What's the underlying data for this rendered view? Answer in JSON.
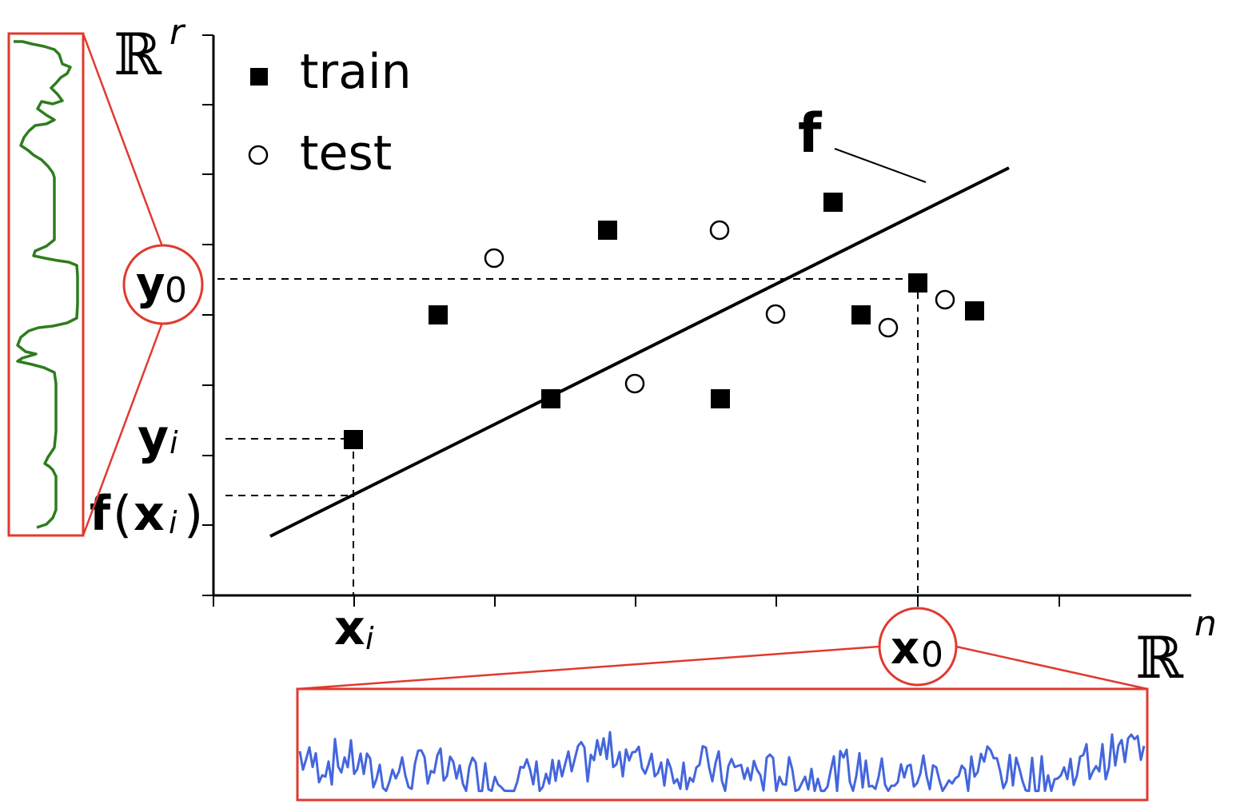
{
  "labels": {
    "range_space": "ℝ",
    "range_exp": "r",
    "domain_space": "ℝ",
    "domain_exp": "n",
    "function": "f",
    "y0_base": "y",
    "y0_sub": "0",
    "yi_base": "y",
    "yi_sub": "i",
    "fxi_f": "f",
    "fxi_open": "(",
    "fxi_x": "x",
    "fxi_sub": "i",
    "fxi_close": ")",
    "xi_base": "x",
    "xi_sub": "i",
    "x0_base": "x",
    "x0_sub": "0"
  },
  "legend": {
    "train": "train",
    "test": "test"
  },
  "colors": {
    "axis": "#000000",
    "highlight": "#e03a2e",
    "output_signal": "#2e7d1e",
    "input_signal": "#4466dd"
  }
}
